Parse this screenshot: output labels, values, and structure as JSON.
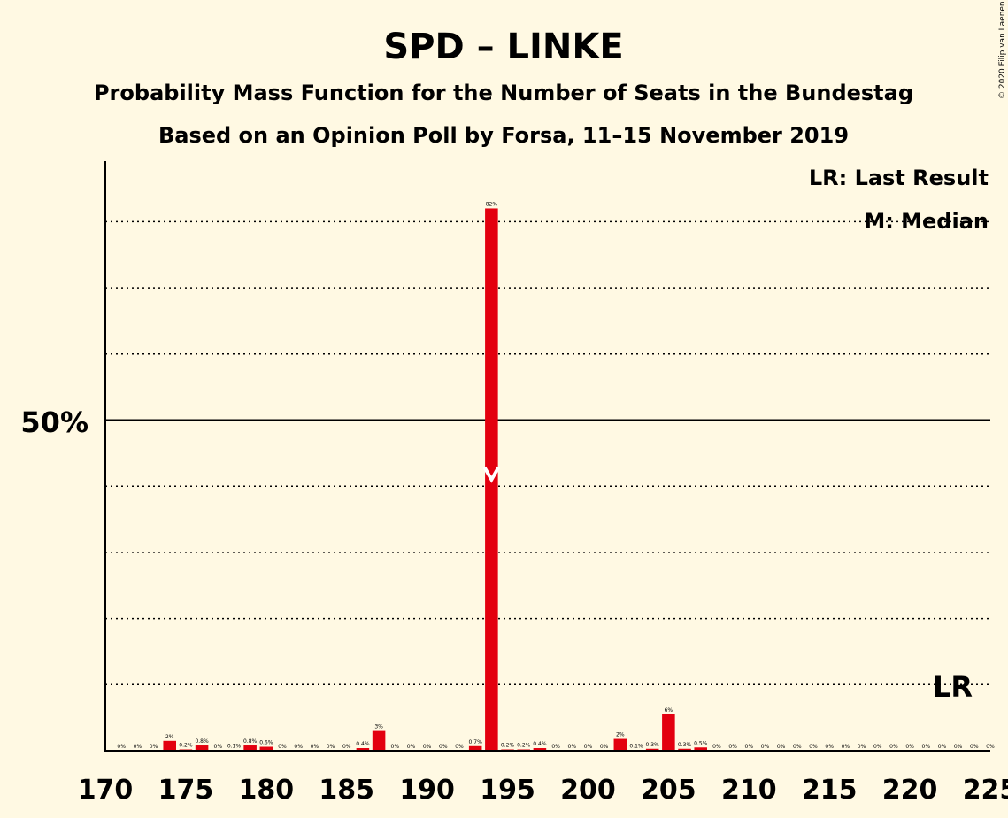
{
  "chart_data": {
    "type": "bar",
    "title": "SPD – LINKE",
    "subtitle_1": "Probability Mass Function for the Number of Seats in the Bundestag",
    "subtitle_2": "Based on an Opinion Poll by Forsa, 11–15 November 2019",
    "copyright": "© 2020 Filip van Laenen",
    "y_axis_label": "50%",
    "x_range": [
      170,
      225
    ],
    "y_range": [
      0,
      100
    ],
    "x_tick_labels": [
      "170",
      "175",
      "180",
      "185",
      "190",
      "195",
      "200",
      "205",
      "210",
      "215",
      "220",
      "225"
    ],
    "x_tick_values": [
      170,
      175,
      180,
      185,
      190,
      195,
      200,
      205,
      210,
      215,
      220,
      225
    ],
    "gridlines": [
      10,
      20,
      30,
      40,
      60,
      70,
      80
    ],
    "majority_line": 50,
    "bar_color": "#E3000F",
    "legend": {
      "lr": "LR: Last Result",
      "median": "M: Median"
    },
    "last_result": {
      "seat": 222,
      "label": "LR"
    },
    "median": {
      "seat": 194
    },
    "seats": [
      171,
      172,
      173,
      174,
      175,
      176,
      177,
      178,
      179,
      180,
      181,
      182,
      183,
      184,
      185,
      186,
      187,
      188,
      189,
      190,
      191,
      192,
      193,
      194,
      195,
      196,
      197,
      198,
      199,
      200,
      201,
      202,
      203,
      204,
      205,
      206,
      207,
      208,
      209,
      210,
      211,
      212,
      213,
      214,
      215,
      216,
      217,
      218,
      219,
      220,
      221,
      222,
      223,
      224,
      225
    ],
    "values": [
      0,
      0,
      0,
      1.5,
      0.2,
      0.8,
      0,
      0.1,
      0.8,
      0.6,
      0,
      0,
      0,
      0,
      0,
      0.4,
      3,
      0,
      0,
      0,
      0,
      0,
      0.7,
      82,
      0.2,
      0.2,
      0.4,
      0,
      0,
      0,
      0,
      1.8,
      0.1,
      0.3,
      5.5,
      0.3,
      0.5,
      0,
      0,
      0,
      0,
      0,
      0,
      0,
      0,
      0,
      0,
      0,
      0,
      0,
      0,
      0,
      0,
      0,
      0
    ],
    "value_labels": [
      "0%",
      "0%",
      "0%",
      "2%",
      "0.2%",
      "0.8%",
      "0%",
      "0.1%",
      "0.8%",
      "0.6%",
      "0%",
      "0%",
      "0%",
      "0%",
      "0%",
      "0.4%",
      "3%",
      "0%",
      "0%",
      "0%",
      "0%",
      "0%",
      "0.7%",
      "82%",
      "0.2%",
      "0.2%",
      "0.4%",
      "0%",
      "0%",
      "0%",
      "0%",
      "2%",
      "0.1%",
      "0.3%",
      "6%",
      "0.3%",
      "0.5%",
      "0%",
      "0%",
      "0%",
      "0%",
      "0%",
      "0%",
      "0%",
      "0%",
      "0%",
      "0%",
      "0%",
      "0%",
      "0%",
      "0%",
      "0%",
      "0%",
      "0%",
      "0%"
    ]
  }
}
